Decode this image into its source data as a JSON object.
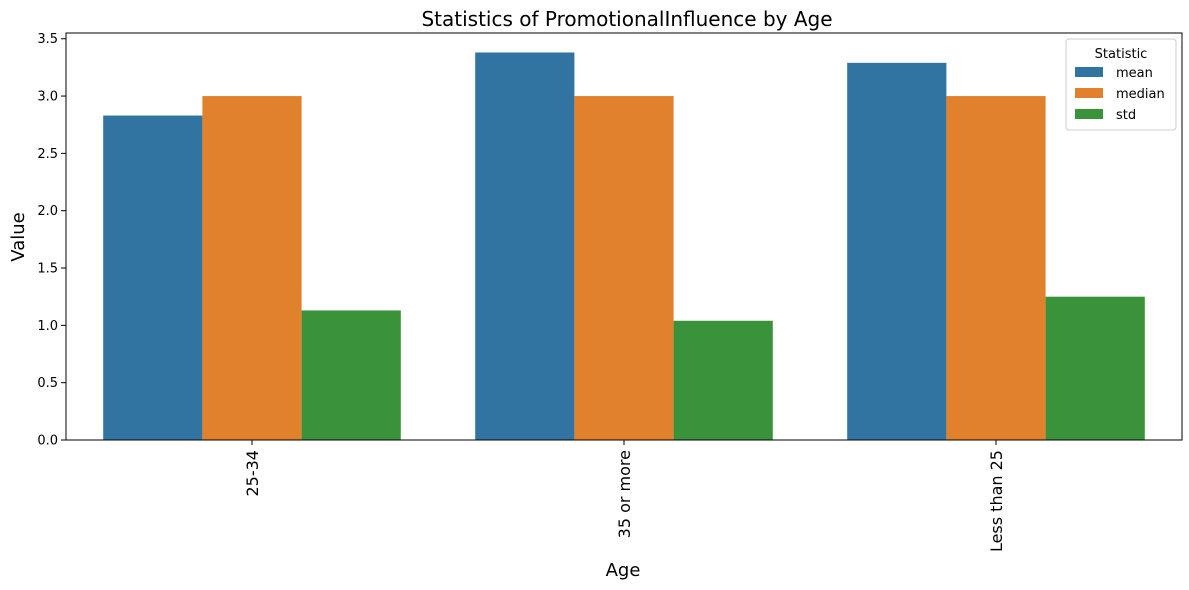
{
  "chart_data": {
    "type": "bar",
    "title": "Statistics of PromotionalInfluence by Age",
    "xlabel": "Age",
    "ylabel": "Value",
    "categories": [
      "25-34",
      "35 or more",
      "Less than 25"
    ],
    "ylim": [
      0,
      3.55
    ],
    "yticks": [
      "0.0",
      "0.5",
      "1.0",
      "1.5",
      "2.0",
      "2.5",
      "3.0",
      "3.5"
    ],
    "grid": false,
    "legend": {
      "title": "Statistic",
      "placement": "top-right"
    },
    "series": [
      {
        "name": "mean",
        "color": "#3274a1",
        "values": [
          2.83,
          3.38,
          3.29
        ]
      },
      {
        "name": "median",
        "color": "#e1812c",
        "values": [
          3.0,
          3.0,
          3.0
        ]
      },
      {
        "name": "std",
        "color": "#3a923a",
        "values": [
          1.13,
          1.04,
          1.25
        ]
      }
    ]
  }
}
